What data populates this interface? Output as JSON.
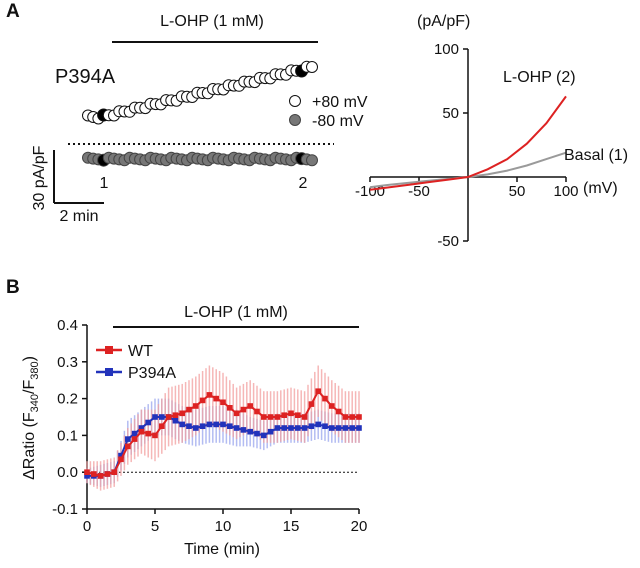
{
  "panel_a": {
    "label": "A",
    "trace": {
      "treatment_label": "L-OHP (1 mM)",
      "mutant_label": "P394A",
      "legend": [
        {
          "name": "+80 mV",
          "color": "#ffffff"
        },
        {
          "name": "-80 mV",
          "color": "#777777"
        }
      ],
      "scalebar_y": "30 pA/pF",
      "scalebar_x": "2 min",
      "marker_1": "1",
      "marker_2": "2",
      "colors": {
        "filled": "#000000",
        "grey": "#777777"
      }
    },
    "iv_chart": {
      "type": "line",
      "y_unit": "(pA/pF)",
      "x_unit": "(mV)",
      "xlim": [
        -100,
        100
      ],
      "ylim": [
        -50,
        100
      ],
      "x_ticks": [
        "-100",
        "-50",
        "50",
        "100"
      ],
      "y_ticks": [
        "100",
        "50",
        "-50"
      ],
      "series": [
        {
          "name": "L-OHP (2)",
          "color": "#dd2222",
          "x": [
            -100,
            -80,
            -60,
            -40,
            -20,
            0,
            20,
            40,
            60,
            80,
            100
          ],
          "y": [
            -10,
            -8,
            -6,
            -4,
            -2,
            0,
            6,
            14,
            26,
            42,
            63
          ]
        },
        {
          "name": "Basal (1)",
          "color": "#9a9a9a",
          "x": [
            -100,
            -80,
            -60,
            -40,
            -20,
            0,
            20,
            40,
            60,
            80,
            100
          ],
          "y": [
            -8,
            -6,
            -4.5,
            -3,
            -1.5,
            0,
            2,
            5,
            9,
            14,
            19
          ]
        }
      ]
    }
  },
  "panel_b": {
    "label": "B",
    "chart_data": {
      "type": "line",
      "treatment_label": "L-OHP (1 mM)",
      "xlabel": "Time (min)",
      "ylabel": "ΔRatio (F340/F380)",
      "ylabel_main": "ΔRatio (F",
      "ylabel_sub1": "340",
      "ylabel_mid": "/F",
      "ylabel_sub2": "380",
      "ylabel_end": ")",
      "xlim": [
        0,
        20
      ],
      "ylim": [
        -0.1,
        0.4
      ],
      "x_ticks": [
        "0",
        "5",
        "10",
        "15",
        "20"
      ],
      "y_ticks": [
        "-0.1",
        "0.0",
        "0.1",
        "0.2",
        "0.3",
        "0.4"
      ],
      "series": [
        {
          "name": "WT",
          "color": "#dd2222",
          "error_color": "#f2a0a0",
          "x": [
            0,
            1,
            2,
            3,
            4,
            5,
            6,
            7,
            8,
            9,
            10,
            11,
            12,
            13,
            14,
            15,
            16,
            17,
            18,
            19,
            20
          ],
          "y": [
            0.0,
            -0.01,
            0.0,
            0.07,
            0.11,
            0.1,
            0.15,
            0.16,
            0.18,
            0.21,
            0.19,
            0.16,
            0.18,
            0.15,
            0.15,
            0.16,
            0.15,
            0.22,
            0.18,
            0.15,
            0.15
          ],
          "err": [
            0.03,
            0.04,
            0.04,
            0.05,
            0.06,
            0.07,
            0.08,
            0.08,
            0.08,
            0.08,
            0.08,
            0.07,
            0.07,
            0.07,
            0.07,
            0.07,
            0.07,
            0.07,
            0.07,
            0.07,
            0.07
          ]
        },
        {
          "name": "P394A",
          "color": "#2233bb",
          "error_color": "#9aa6ee",
          "x": [
            0,
            1,
            2,
            3,
            4,
            5,
            6,
            7,
            8,
            9,
            10,
            11,
            12,
            13,
            14,
            15,
            16,
            17,
            18,
            19,
            20
          ],
          "y": [
            -0.01,
            -0.01,
            0.0,
            0.09,
            0.12,
            0.15,
            0.15,
            0.13,
            0.12,
            0.13,
            0.13,
            0.12,
            0.11,
            0.1,
            0.12,
            0.12,
            0.12,
            0.13,
            0.12,
            0.12,
            0.12
          ],
          "err": [
            0.02,
            0.03,
            0.03,
            0.05,
            0.05,
            0.05,
            0.05,
            0.05,
            0.05,
            0.05,
            0.05,
            0.05,
            0.04,
            0.04,
            0.04,
            0.04,
            0.04,
            0.04,
            0.04,
            0.04,
            0.04
          ]
        }
      ]
    }
  }
}
